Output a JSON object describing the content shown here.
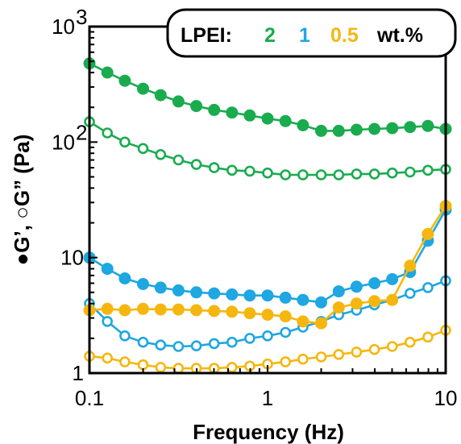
{
  "chart_data": {
    "type": "line",
    "xscale": "log",
    "yscale": "log",
    "xlim": [
      0.1,
      10
    ],
    "ylim": [
      1,
      1000
    ],
    "xticks": [
      "0.1",
      "1",
      "10"
    ],
    "yticks": [
      {
        "value": 1,
        "base": "1",
        "exp": ""
      },
      {
        "value": 10,
        "base": "10",
        "exp": ""
      },
      {
        "value": 100,
        "base": "10",
        "exp": "2"
      },
      {
        "value": 1000,
        "base": "10",
        "exp": "3"
      }
    ],
    "xlabel": "Frequency (Hz)",
    "ylabel": "●G’, ○G” (Pa)",
    "legend": {
      "placement": "top-right",
      "title": "LPEI:",
      "entries": [
        {
          "label": "2",
          "color": "#1aab4f"
        },
        {
          "label": "1",
          "color": "#1ea7e1"
        },
        {
          "label": "0.5",
          "color": "#f5b70f"
        }
      ],
      "unit": "wt.%"
    },
    "x": [
      0.1,
      0.126,
      0.158,
      0.2,
      0.251,
      0.316,
      0.398,
      0.501,
      0.631,
      0.794,
      1.0,
      1.26,
      1.58,
      2.0,
      2.51,
      3.16,
      3.98,
      5.01,
      6.31,
      7.94,
      10.0
    ],
    "series": [
      {
        "name": "2",
        "modulus": "G'",
        "marker": "filled",
        "color": "#1aab4f",
        "values": [
          480,
          400,
          340,
          290,
          255,
          225,
          205,
          190,
          180,
          170,
          160,
          152,
          140,
          125,
          125,
          128,
          130,
          132,
          135,
          138,
          130
        ]
      },
      {
        "name": "2",
        "modulus": "G''",
        "marker": "open",
        "color": "#1aab4f",
        "values": [
          150,
          120,
          100,
          88,
          78,
          70,
          64,
          60,
          57,
          56,
          54,
          52,
          52,
          52,
          52,
          53,
          53,
          54,
          55,
          57,
          58
        ]
      },
      {
        "name": "1",
        "modulus": "G'",
        "marker": "filled",
        "color": "#1ea7e1",
        "values": [
          10.0,
          8.0,
          6.6,
          5.9,
          5.5,
          5.2,
          5.0,
          4.9,
          4.8,
          4.7,
          4.7,
          4.5,
          4.3,
          4.1,
          5.1,
          5.6,
          6.0,
          6.5,
          7.5,
          14.0,
          26.0
        ]
      },
      {
        "name": "1",
        "modulus": "G''",
        "marker": "open",
        "color": "#1ea7e1",
        "values": [
          4.0,
          2.8,
          2.1,
          1.85,
          1.75,
          1.7,
          1.72,
          1.8,
          1.85,
          2.0,
          2.1,
          2.25,
          2.5,
          2.8,
          3.2,
          3.5,
          3.9,
          4.3,
          4.9,
          5.5,
          6.3
        ]
      },
      {
        "name": "0.5",
        "modulus": "G'",
        "marker": "filled",
        "color": "#f5b70f",
        "values": [
          3.5,
          3.6,
          3.5,
          3.6,
          3.55,
          3.55,
          3.5,
          3.45,
          3.4,
          3.3,
          3.2,
          3.1,
          2.8,
          2.7,
          3.7,
          4.0,
          4.2,
          4.3,
          8.5,
          16.0,
          28.0
        ]
      },
      {
        "name": "0.5",
        "modulus": "G''",
        "marker": "open",
        "color": "#f5b70f",
        "values": [
          1.4,
          1.35,
          1.25,
          1.18,
          1.12,
          1.1,
          1.1,
          1.1,
          1.12,
          1.15,
          1.2,
          1.25,
          1.32,
          1.38,
          1.45,
          1.52,
          1.6,
          1.7,
          1.85,
          2.05,
          2.35
        ]
      }
    ]
  }
}
